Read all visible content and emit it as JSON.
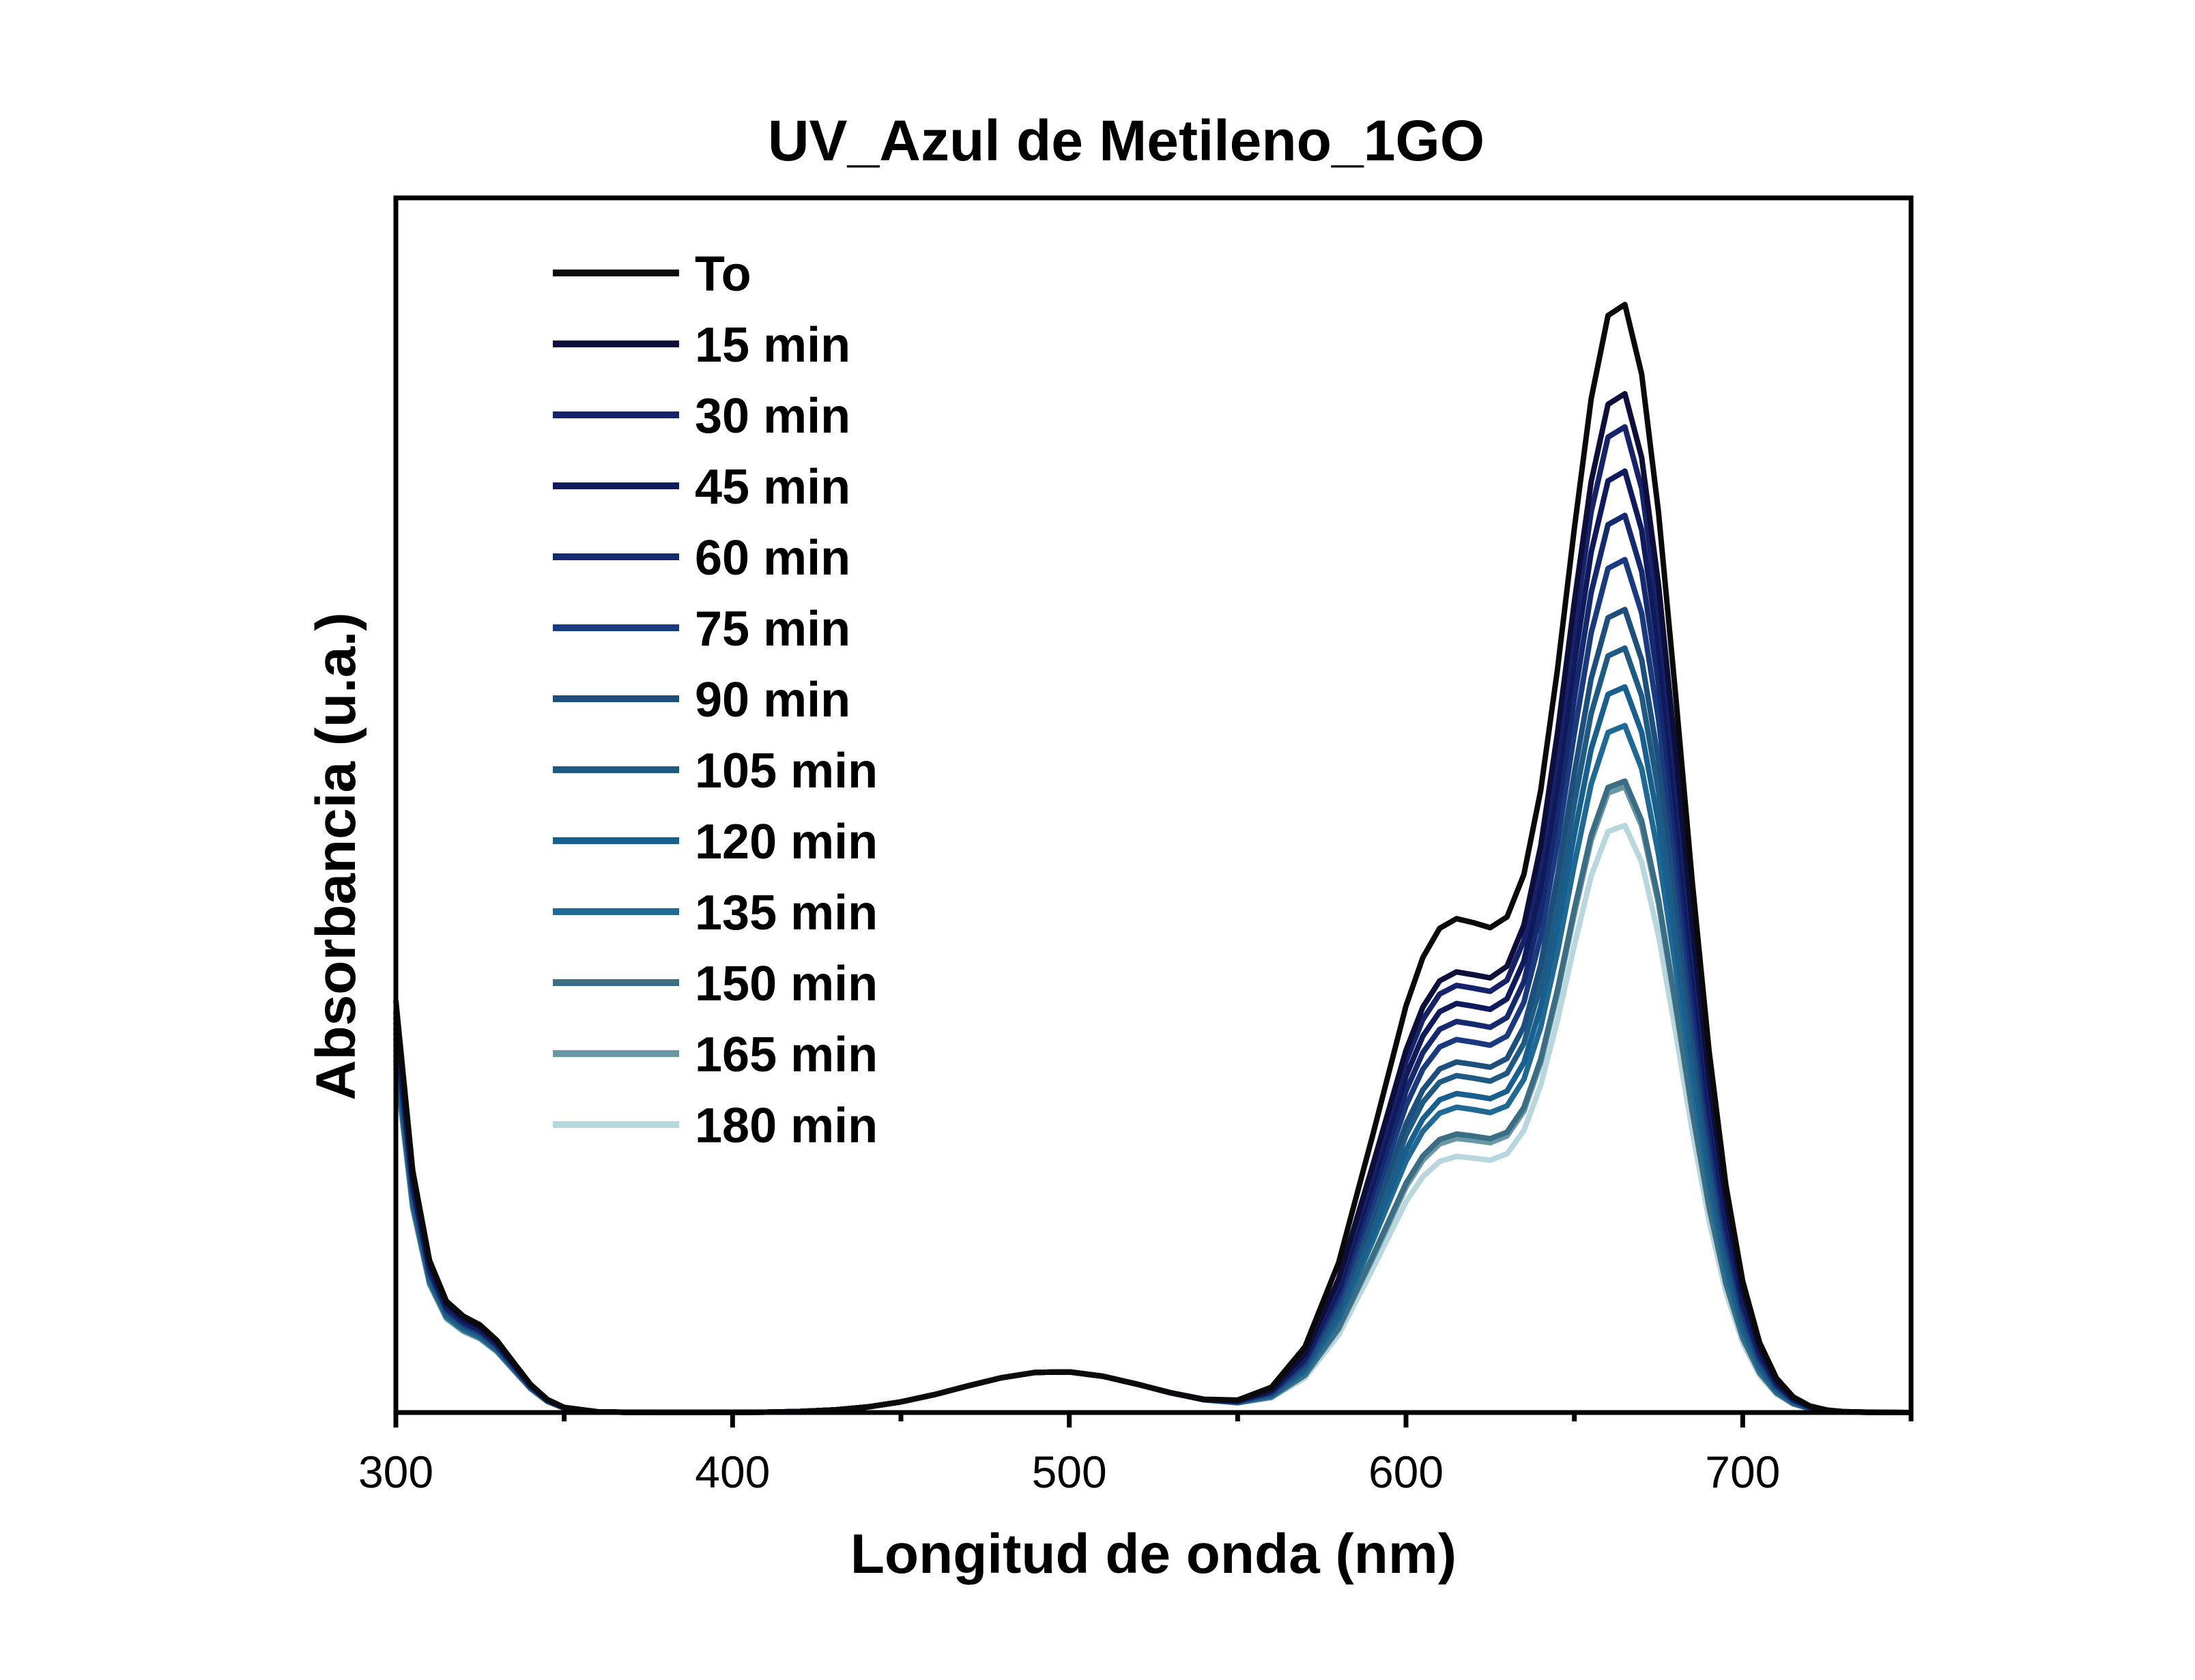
{
  "chart_data": {
    "type": "line",
    "title": "UV_Azul de Metileno_1GO",
    "xlabel": "Longitud de onda (nm)",
    "ylabel": "Absorbancia (u.a.)",
    "xlim": [
      300,
      750
    ],
    "ylim": [
      0,
      1.0
    ],
    "x_ticks": [
      300,
      400,
      500,
      600,
      700
    ],
    "x_tick_labels": [
      "300",
      "400",
      "500",
      "600",
      "700"
    ],
    "x_minor_ticks": [
      350,
      450,
      550,
      650,
      750
    ],
    "y_ticks_shown": false,
    "grid": false,
    "legend_position": "top-left",
    "x_nm": [
      300,
      305,
      310,
      315,
      320,
      325,
      330,
      335,
      340,
      345,
      350,
      360,
      370,
      380,
      390,
      400,
      410,
      420,
      430,
      440,
      450,
      460,
      470,
      480,
      490,
      500,
      510,
      520,
      530,
      540,
      550,
      560,
      570,
      580,
      590,
      600,
      605,
      610,
      615,
      620,
      625,
      630,
      635,
      640,
      645,
      650,
      655,
      660,
      665,
      670,
      675,
      680,
      685,
      690,
      695,
      700,
      705,
      710,
      715,
      720,
      725,
      730,
      740,
      750
    ],
    "series": [
      {
        "name": "To",
        "color": "#0a0a0a",
        "peak": 1.0,
        "shoulder": 0.55,
        "uv": 0.38
      },
      {
        "name": "15 min",
        "color": "#0d0f3a",
        "peak": 0.92,
        "shoulder": 0.49,
        "uv": 0.37
      },
      {
        "name": "30 min",
        "color": "#16236b",
        "peak": 0.89,
        "shoulder": 0.475,
        "uv": 0.365
      },
      {
        "name": "45 min",
        "color": "#0e1a5c",
        "peak": 0.85,
        "shoulder": 0.455,
        "uv": 0.36
      },
      {
        "name": "60 min",
        "color": "#15296e",
        "peak": 0.81,
        "shoulder": 0.435,
        "uv": 0.355
      },
      {
        "name": "75 min",
        "color": "#1a3a80",
        "peak": 0.77,
        "shoulder": 0.415,
        "uv": 0.35
      },
      {
        "name": "90 min",
        "color": "#1d4f7c",
        "peak": 0.725,
        "shoulder": 0.39,
        "uv": 0.345
      },
      {
        "name": "105 min",
        "color": "#1f5a82",
        "peak": 0.69,
        "shoulder": 0.375,
        "uv": 0.34
      },
      {
        "name": "120 min",
        "color": "#175f8e",
        "peak": 0.655,
        "shoulder": 0.355,
        "uv": 0.335
      },
      {
        "name": "135 min",
        "color": "#1f6a94",
        "peak": 0.62,
        "shoulder": 0.34,
        "uv": 0.33
      },
      {
        "name": "150 min",
        "color": "#3b6e84",
        "peak": 0.57,
        "shoulder": 0.31,
        "uv": 0.325
      },
      {
        "name": "165 min",
        "color": "#6a97a6",
        "peak": 0.565,
        "shoulder": 0.305,
        "uv": 0.322
      },
      {
        "name": "180 min",
        "color": "#b8d6de",
        "peak": 0.53,
        "shoulder": 0.285,
        "uv": 0.318
      }
    ]
  }
}
